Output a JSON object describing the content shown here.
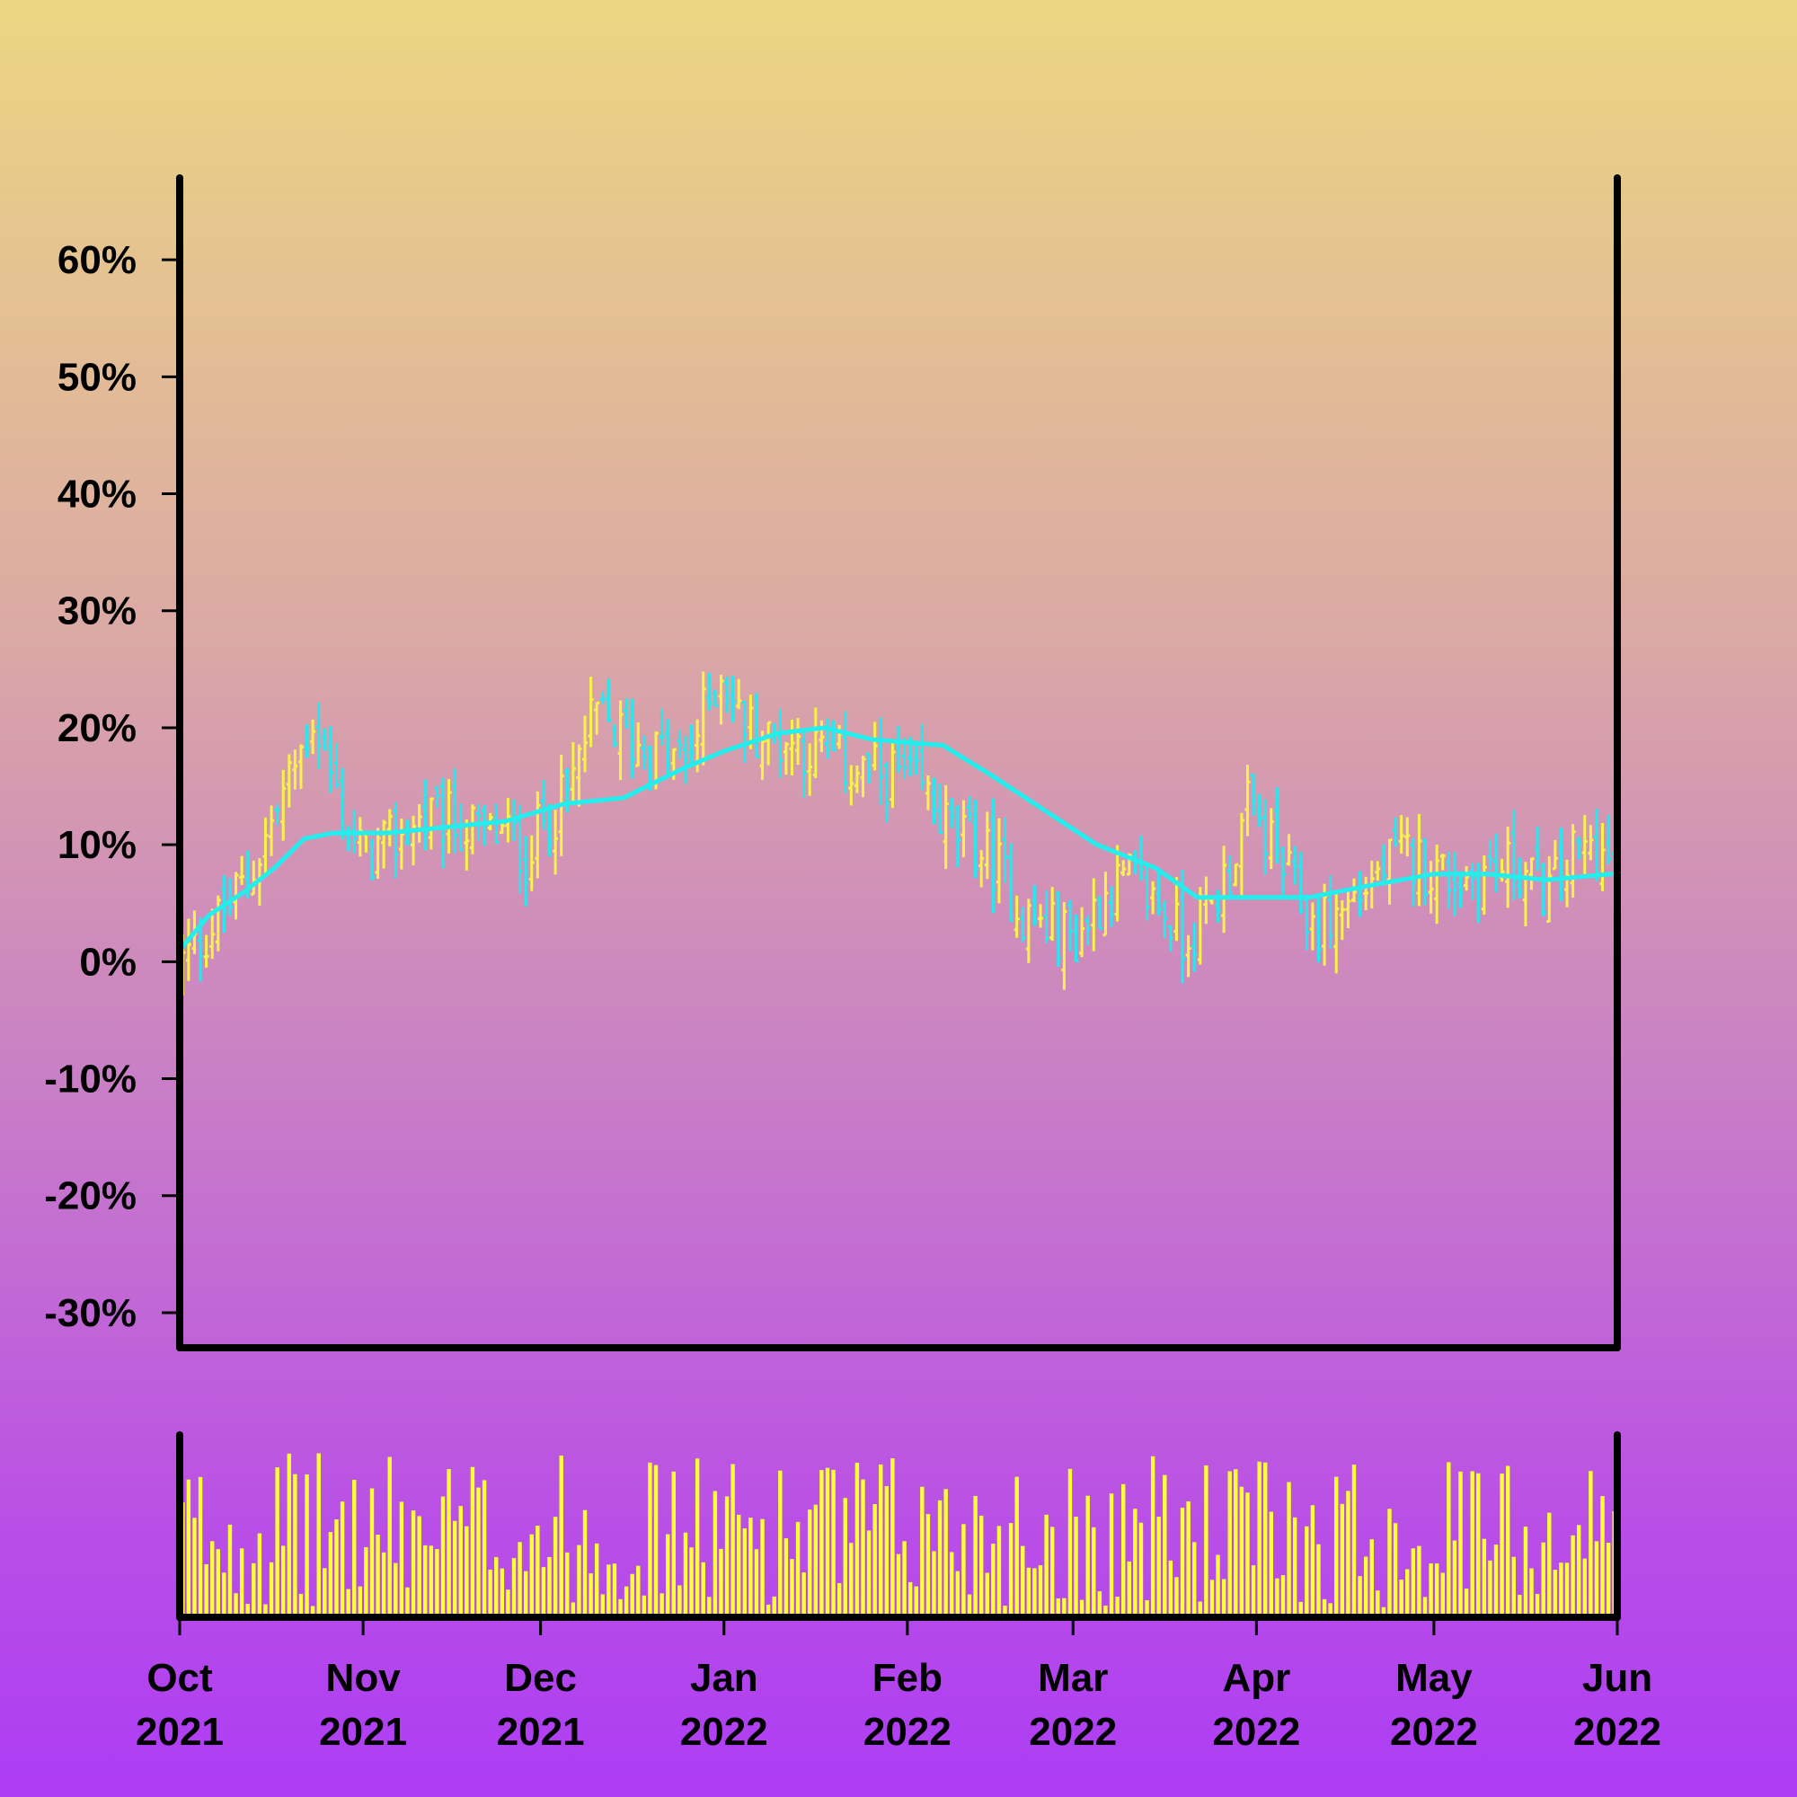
{
  "chart_data": {
    "type": "ohlc",
    "title": "",
    "xlabel": "",
    "ylabel": "",
    "y_unit": "%",
    "ylim": [
      -33,
      67
    ],
    "yticks": [
      "60%",
      "50%",
      "40%",
      "30%",
      "20%",
      "10%",
      "0%",
      "-10%",
      "-20%",
      "-30%"
    ],
    "ytick_values": [
      60,
      50,
      40,
      30,
      20,
      10,
      0,
      -10,
      -20,
      -30
    ],
    "xlim": [
      "2021-10-01",
      "2022-06-01"
    ],
    "xticks": [
      {
        "date": "2021-10-01",
        "month": "Oct",
        "year": "2021"
      },
      {
        "date": "2021-11-01",
        "month": "Nov",
        "year": "2021"
      },
      {
        "date": "2021-12-01",
        "month": "Dec",
        "year": "2021"
      },
      {
        "date": "2022-01-01",
        "month": "Jan",
        "year": "2022"
      },
      {
        "date": "2022-02-01",
        "month": "Feb",
        "year": "2022"
      },
      {
        "date": "2022-03-01",
        "month": "Mar",
        "year": "2022"
      },
      {
        "date": "2022-04-01",
        "month": "Apr",
        "year": "2022"
      },
      {
        "date": "2022-05-01",
        "month": "May",
        "year": "2022"
      },
      {
        "date": "2022-06-01",
        "month": "Jun",
        "year": "2022"
      }
    ],
    "price_path_pct": [
      [
        "2021-10-01",
        0
      ],
      [
        "2021-10-06",
        3
      ],
      [
        "2021-10-12",
        7
      ],
      [
        "2021-10-17",
        13
      ],
      [
        "2021-10-21",
        18
      ],
      [
        "2021-10-23",
        21
      ],
      [
        "2021-10-26",
        16
      ],
      [
        "2021-10-29",
        11
      ],
      [
        "2021-11-01",
        9
      ],
      [
        "2021-11-05",
        10
      ],
      [
        "2021-11-10",
        12
      ],
      [
        "2021-11-15",
        12
      ],
      [
        "2021-11-20",
        11
      ],
      [
        "2021-11-25",
        11
      ],
      [
        "2021-11-28",
        9
      ],
      [
        "2021-12-01",
        12
      ],
      [
        "2021-12-05",
        14
      ],
      [
        "2021-12-08",
        19
      ],
      [
        "2021-12-10",
        21
      ],
      [
        "2021-12-15",
        19
      ],
      [
        "2021-12-20",
        18
      ],
      [
        "2021-12-25",
        17
      ],
      [
        "2021-12-28",
        21
      ],
      [
        "2021-12-31",
        25
      ],
      [
        "2022-01-03",
        21
      ],
      [
        "2022-01-08",
        19
      ],
      [
        "2022-01-12",
        19
      ],
      [
        "2022-01-16",
        18
      ],
      [
        "2022-01-20",
        17
      ],
      [
        "2022-01-25",
        16
      ],
      [
        "2022-01-30",
        16
      ],
      [
        "2022-02-04",
        14
      ],
      [
        "2022-02-08",
        11
      ],
      [
        "2022-02-12",
        10
      ],
      [
        "2022-02-16",
        8
      ],
      [
        "2022-02-20",
        4
      ],
      [
        "2022-02-24",
        3
      ],
      [
        "2022-03-01",
        2
      ],
      [
        "2022-03-06",
        6
      ],
      [
        "2022-03-10",
        7
      ],
      [
        "2022-03-15",
        5
      ],
      [
        "2022-03-19",
        2
      ],
      [
        "2022-03-23",
        4
      ],
      [
        "2022-03-27",
        8
      ],
      [
        "2022-03-30",
        13
      ],
      [
        "2022-04-02",
        11
      ],
      [
        "2022-04-06",
        7
      ],
      [
        "2022-04-10",
        3
      ],
      [
        "2022-04-14",
        4
      ],
      [
        "2022-04-18",
        6
      ],
      [
        "2022-04-22",
        8
      ],
      [
        "2022-04-26",
        9
      ],
      [
        "2022-04-30",
        8
      ],
      [
        "2022-05-05",
        7
      ],
      [
        "2022-05-10",
        8
      ],
      [
        "2022-05-15",
        8
      ],
      [
        "2022-05-20",
        6
      ],
      [
        "2022-05-24",
        9
      ],
      [
        "2022-05-28",
        10
      ],
      [
        "2022-05-31",
        7
      ]
    ],
    "moving_average_pct": [
      [
        "2021-10-01",
        1
      ],
      [
        "2021-10-06",
        4
      ],
      [
        "2021-10-12",
        6
      ],
      [
        "2021-10-17",
        8
      ],
      [
        "2021-10-22",
        10.5
      ],
      [
        "2021-10-27",
        11
      ],
      [
        "2021-11-05",
        11
      ],
      [
        "2021-11-15",
        11.5
      ],
      [
        "2021-11-25",
        12
      ],
      [
        "2021-12-05",
        13.5
      ],
      [
        "2021-12-15",
        14
      ],
      [
        "2021-12-25",
        16.5
      ],
      [
        "2022-01-01",
        18
      ],
      [
        "2022-01-10",
        19.5
      ],
      [
        "2022-01-18",
        20
      ],
      [
        "2022-01-26",
        19
      ],
      [
        "2022-02-07",
        18.5
      ],
      [
        "2022-02-15",
        16
      ],
      [
        "2022-02-24",
        13
      ],
      [
        "2022-03-05",
        10
      ],
      [
        "2022-03-15",
        8
      ],
      [
        "2022-03-22",
        5.5
      ],
      [
        "2022-04-01",
        5.5
      ],
      [
        "2022-04-10",
        5.5
      ],
      [
        "2022-04-20",
        6.5
      ],
      [
        "2022-05-01",
        7.5
      ],
      [
        "2022-05-10",
        7.5
      ],
      [
        "2022-05-20",
        7
      ],
      [
        "2022-05-31",
        7.5
      ]
    ],
    "colors": {
      "up": "#f7f34a",
      "down": "#25e9ee",
      "moving_average": "#22eeee",
      "volume": "#ffff33",
      "axes": "#000000",
      "background_top": "#ecd682",
      "background_bottom": "#ad3cf4"
    },
    "grid": false,
    "legend": "none",
    "volume_panel": true,
    "volume_scale": "relative"
  }
}
